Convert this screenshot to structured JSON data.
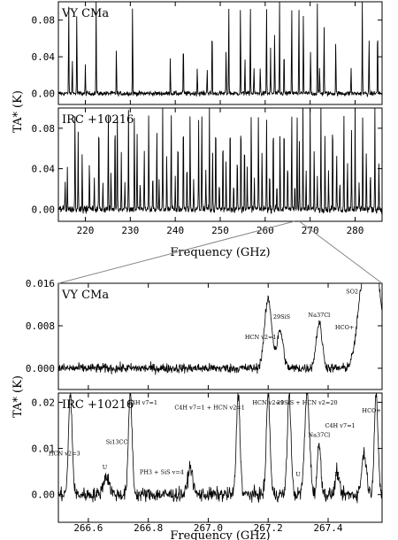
{
  "chart_data": [
    {
      "type": "line",
      "x_range": [
        214,
        286
      ],
      "x_ticks": [
        "220",
        "230",
        "240",
        "250",
        "260",
        "270",
        "280"
      ],
      "x_tick_values": [
        220,
        230,
        240,
        250,
        260,
        270,
        280
      ],
      "xlabel": "Frequency (GHz)",
      "ylabel": "TA* (K)",
      "panels": [
        {
          "name": "VY CMa",
          "ylim": [
            -0.012,
            0.1
          ],
          "y_ticks": [
            "0.00",
            "0.04",
            "0.08"
          ],
          "y_tick_values": [
            0.0,
            0.04,
            0.08
          ],
          "noise": 0.0025,
          "lines": [
            [
              216.3,
              0.1
            ],
            [
              217.1,
              0.04
            ],
            [
              218.1,
              0.09
            ],
            [
              220.0,
              0.03
            ],
            [
              222.4,
              0.1
            ],
            [
              226.9,
              0.05
            ],
            [
              230.5,
              0.1
            ],
            [
              238.9,
              0.04
            ],
            [
              241.8,
              0.06
            ],
            [
              244.9,
              0.03
            ],
            [
              247.1,
              0.03
            ],
            [
              248.2,
              0.08
            ],
            [
              251.3,
              0.05
            ],
            [
              251.9,
              0.1
            ],
            [
              254.5,
              0.1
            ],
            [
              255.5,
              0.04
            ],
            [
              256.7,
              0.1
            ],
            [
              257.5,
              0.03
            ],
            [
              258.9,
              0.03
            ],
            [
              260.3,
              0.1
            ],
            [
              261.2,
              0.05
            ],
            [
              262.1,
              0.07
            ],
            [
              263.2,
              0.1
            ],
            [
              264.2,
              0.05
            ],
            [
              265.9,
              0.1
            ],
            [
              267.5,
              0.1
            ],
            [
              268.5,
              0.09
            ],
            [
              270.1,
              0.05
            ],
            [
              271.6,
              0.1
            ],
            [
              272.1,
              0.03
            ],
            [
              273.1,
              0.08
            ],
            [
              275.7,
              0.06
            ],
            [
              279.1,
              0.03
            ],
            [
              281.6,
              0.1
            ],
            [
              283.1,
              0.06
            ],
            [
              285.0,
              0.08
            ]
          ]
        },
        {
          "name": "IRC +10216",
          "ylim": [
            -0.012,
            0.1
          ],
          "y_ticks": [
            "0.00",
            "0.04",
            "0.08"
          ],
          "y_tick_values": [
            0.0,
            0.04,
            0.08
          ],
          "noise": 0.0035,
          "lines": [
            [
              215.5,
              0.03
            ],
            [
              216.0,
              0.04
            ],
            [
              217.7,
              0.1
            ],
            [
              218.4,
              0.08
            ],
            [
              219.3,
              0.06
            ],
            [
              220.9,
              0.05
            ],
            [
              222.0,
              0.03
            ],
            [
              223.0,
              0.1
            ],
            [
              223.9,
              0.03
            ],
            [
              225.1,
              0.1
            ],
            [
              225.7,
              0.04
            ],
            [
              226.6,
              0.1
            ],
            [
              227.1,
              0.1
            ],
            [
              228.0,
              0.06
            ],
            [
              228.8,
              0.03
            ],
            [
              229.6,
              0.1
            ],
            [
              230.9,
              0.1
            ],
            [
              231.5,
              0.08
            ],
            [
              232.2,
              0.03
            ],
            [
              233.1,
              0.06
            ],
            [
              234.1,
              0.1
            ],
            [
              235.0,
              0.04
            ],
            [
              235.9,
              0.08
            ],
            [
              236.4,
              0.03
            ],
            [
              237.2,
              0.1
            ],
            [
              238.1,
              0.06
            ],
            [
              239.1,
              0.1
            ],
            [
              240.0,
              0.03
            ],
            [
              240.6,
              0.08
            ],
            [
              241.8,
              0.1
            ],
            [
              242.6,
              0.05
            ],
            [
              243.3,
              0.1
            ],
            [
              244.1,
              0.03
            ],
            [
              245.2,
              0.09
            ],
            [
              245.9,
              0.1
            ],
            [
              246.8,
              0.04
            ],
            [
              247.6,
              0.1
            ],
            [
              248.3,
              0.06
            ],
            [
              249.0,
              0.1
            ],
            [
              249.8,
              0.03
            ],
            [
              250.6,
              0.08
            ],
            [
              251.3,
              0.05
            ],
            [
              252.2,
              0.1
            ],
            [
              253.0,
              0.03
            ],
            [
              253.8,
              0.06
            ],
            [
              254.6,
              0.1
            ],
            [
              255.4,
              0.08
            ],
            [
              256.0,
              0.04
            ],
            [
              256.9,
              0.1
            ],
            [
              257.6,
              0.03
            ],
            [
              258.5,
              0.1
            ],
            [
              259.3,
              0.06
            ],
            [
              260.3,
              0.1
            ],
            [
              261.0,
              0.04
            ],
            [
              261.8,
              0.1
            ],
            [
              262.6,
              0.03
            ],
            [
              263.3,
              0.08
            ],
            [
              264.2,
              0.1
            ],
            [
              265.0,
              0.05
            ],
            [
              265.9,
              0.1
            ],
            [
              266.6,
              0.03
            ],
            [
              267.1,
              0.1
            ],
            [
              267.6,
              0.07
            ],
            [
              268.4,
              0.1
            ],
            [
              269.1,
              0.04
            ],
            [
              270.0,
              0.1
            ],
            [
              270.9,
              0.06
            ],
            [
              271.6,
              0.03
            ],
            [
              272.4,
              0.1
            ],
            [
              273.3,
              0.08
            ],
            [
              274.1,
              0.04
            ],
            [
              275.0,
              0.1
            ],
            [
              275.9,
              0.06
            ],
            [
              276.6,
              0.03
            ],
            [
              277.5,
              0.1
            ],
            [
              278.3,
              0.05
            ],
            [
              279.2,
              0.08
            ],
            [
              280.0,
              0.1
            ],
            [
              280.9,
              0.03
            ],
            [
              281.7,
              0.1
            ],
            [
              282.5,
              0.06
            ],
            [
              283.4,
              0.04
            ],
            [
              284.4,
              0.1
            ],
            [
              285.3,
              0.05
            ]
          ]
        }
      ]
    },
    {
      "type": "line",
      "x_range": [
        266.5,
        267.58
      ],
      "x_ticks": [
        "266.6",
        "266.8",
        "267.0",
        "267.2",
        "267.4"
      ],
      "x_tick_values": [
        266.6,
        266.8,
        267.0,
        267.2,
        267.4
      ],
      "xlabel": "Frequency (GHz)",
      "ylabel": "TA* (K)",
      "panels": [
        {
          "name": "VY CMa",
          "ylim": [
            -0.004,
            0.016
          ],
          "y_ticks": [
            "0.000",
            "0.008",
            "0.016"
          ],
          "y_tick_values": [
            0.0,
            0.008,
            0.016
          ],
          "noise": 0.0009,
          "lines": [
            [
              267.2,
              0.013
            ],
            [
              267.24,
              0.007
            ],
            [
              267.37,
              0.0085
            ],
            [
              267.52,
              0.017
            ],
            [
              267.56,
              0.017
            ]
          ],
          "widths": [
            0.012,
            0.01,
            0.01,
            0.02,
            0.02
          ],
          "annotations": [
            {
              "text": "29SiS",
              "sup": "29",
              "base": "SiS",
              "x": 267.245,
              "y": 0.0093
            },
            {
              "text": "Na37Cl",
              "sup": "37",
              "pre": "Na",
              "base": "Cl",
              "x": 267.37,
              "y": 0.0097
            },
            {
              "text": "HCN v2=1",
              "x": 267.175,
              "y": 0.0055
            },
            {
              "text": "SO2",
              "x": 267.48,
              "y": 0.0141
            },
            {
              "text": "HCO+",
              "x": 267.455,
              "y": 0.0073
            }
          ]
        },
        {
          "name": "IRC +10216",
          "ylim": [
            -0.006,
            0.022
          ],
          "y_ticks": [
            "0.00",
            "0.01",
            "0.02"
          ],
          "y_tick_values": [
            0.0,
            0.01,
            0.02
          ],
          "noise": 0.0015,
          "lines": [
            [
              266.54,
              0.022
            ],
            [
              266.66,
              0.004
            ],
            [
              266.74,
              0.022
            ],
            [
              266.94,
              0.006
            ],
            [
              267.1,
              0.022
            ],
            [
              267.2,
              0.022
            ],
            [
              267.27,
              0.022
            ],
            [
              267.33,
              0.022
            ],
            [
              267.37,
              0.011
            ],
            [
              267.43,
              0.005
            ],
            [
              267.52,
              0.009
            ],
            [
              267.56,
              0.022
            ]
          ],
          "widths": [
            0.006,
            0.01,
            0.006,
            0.008,
            0.006,
            0.006,
            0.006,
            0.008,
            0.006,
            0.006,
            0.008,
            0.006
          ],
          "annotations": [
            {
              "text": "HCN v2=3",
              "x": 266.52,
              "y": 0.0085
            },
            {
              "text": "Si13CC",
              "x": 266.695,
              "y": 0.011
            },
            {
              "text": "C4H v7=1",
              "x": 266.78,
              "y": 0.0195
            },
            {
              "text": "PH3 + SiS v=4",
              "x": 266.845,
              "y": 0.0045
            },
            {
              "text": "C4H v7=1 + HCN v2=1",
              "x": 267.005,
              "y": 0.0185
            },
            {
              "text": "HCN v2=1",
              "x": 267.2,
              "y": 0.0195
            },
            {
              "text": "29SiS + HCN v2=20",
              "x": 267.33,
              "y": 0.0195
            },
            {
              "text": "Na37Cl",
              "x": 267.37,
              "y": 0.0125
            },
            {
              "text": "C4H v7=1",
              "x": 267.44,
              "y": 0.0145
            },
            {
              "text": "HCO+",
              "x": 267.545,
              "y": 0.0178
            },
            {
              "text": "U",
              "x": 266.655,
              "y": 0.0055
            },
            {
              "text": "U",
              "x": 267.3,
              "y": 0.004
            },
            {
              "text": "U",
              "x": 267.43,
              "y": 0.004
            }
          ]
        }
      ]
    }
  ]
}
